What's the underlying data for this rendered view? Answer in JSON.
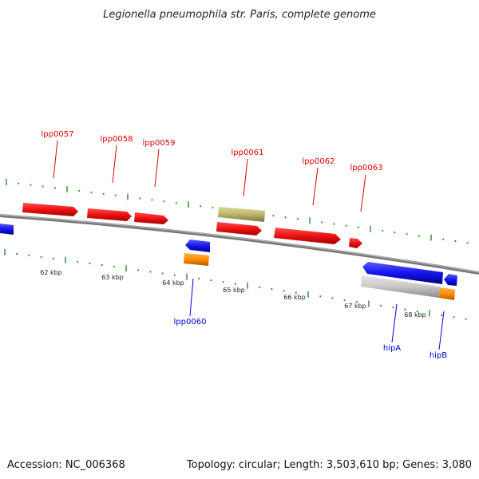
{
  "title": "Legionella pneumophila str. Paris, complete genome",
  "footer": {
    "accession": "Accession: NC_006368",
    "summary": "Topology: circular; Length: 3,503,610 bp; Genes: 3,080"
  },
  "colors": {
    "backbone": "#8a8a8a",
    "tick": "#2a8a2a",
    "forward_label": "#dd0000",
    "reverse_label": "#0000cc",
    "gene_red": "#ee1111",
    "gene_blue": "#1515ee",
    "gene_orange": "#ff8c00",
    "gene_olive": "#bdb76b",
    "gene_gray": "#c8c8c8"
  },
  "scale_labels": [
    "62 kbp",
    "63 kbp",
    "64 kbp",
    "65 kbp",
    "66 kbp",
    "67 kbp",
    "68 kbp"
  ],
  "forward_gene_labels": [
    "lpp0057",
    "lpp0058",
    "lpp0059",
    "lpp0061",
    "lpp0062",
    "lpp0063"
  ],
  "reverse_gene_labels": [
    "lpp0060",
    "hipA",
    "hipB"
  ]
}
